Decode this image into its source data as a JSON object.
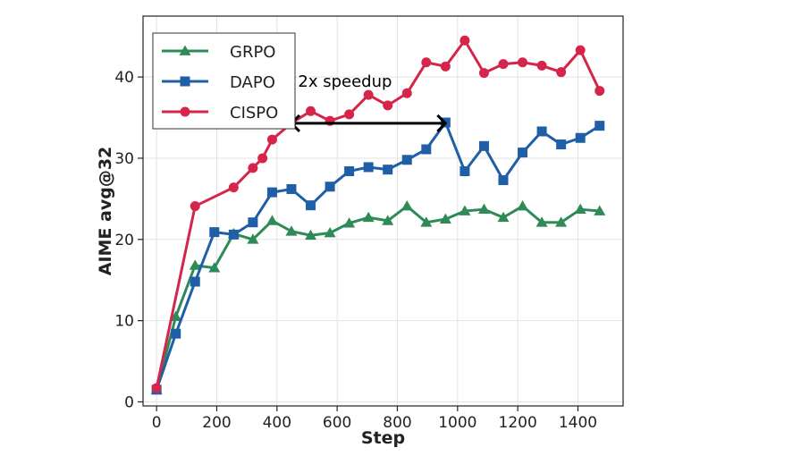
{
  "chart_data": {
    "type": "line",
    "title": "",
    "xlabel": "Step",
    "ylabel": "AIME avg@32",
    "xlim": [
      -45,
      1550
    ],
    "ylim": [
      -0.5,
      47.5
    ],
    "xticks": [
      0,
      200,
      400,
      600,
      800,
      1000,
      1200,
      1400
    ],
    "yticks": [
      0,
      10,
      20,
      30,
      40
    ],
    "grid": true,
    "legend_position": "top-left",
    "series": [
      {
        "name": "GRPO",
        "color": "#2e8b57",
        "marker": "triangle",
        "x": [
          0,
          64,
          128,
          192,
          256,
          320,
          384,
          448,
          512,
          576,
          640,
          704,
          768,
          832,
          896,
          960,
          1024,
          1088,
          1152,
          1216,
          1280,
          1344,
          1408,
          1472
        ],
        "y": [
          1.5,
          10.5,
          16.8,
          16.5,
          20.7,
          20.0,
          22.3,
          21.0,
          20.5,
          20.8,
          22.0,
          22.7,
          22.3,
          24.1,
          22.1,
          22.5,
          23.5,
          23.7,
          22.7,
          24.1,
          22.1,
          22.1,
          23.7,
          23.5
        ]
      },
      {
        "name": "DAPO",
        "color": "#1f5fa8",
        "marker": "square",
        "x": [
          0,
          64,
          128,
          192,
          256,
          320,
          384,
          448,
          512,
          576,
          640,
          704,
          768,
          832,
          896,
          960,
          1024,
          1088,
          1152,
          1216,
          1280,
          1344,
          1408,
          1472
        ],
        "y": [
          1.5,
          8.4,
          14.8,
          20.9,
          20.6,
          22.1,
          25.8,
          26.2,
          24.2,
          26.5,
          28.4,
          28.9,
          28.6,
          29.8,
          31.1,
          34.4,
          28.4,
          31.5,
          27.3,
          30.7,
          33.3,
          31.7,
          32.5,
          34.0
        ]
      },
      {
        "name": "CISPO",
        "color": "#d6254a",
        "marker": "circle",
        "x": [
          0,
          128,
          256,
          320,
          352,
          384,
          448,
          512,
          576,
          640,
          704,
          768,
          832,
          896,
          960,
          1024,
          1088,
          1152,
          1216,
          1280,
          1344,
          1408,
          1472
        ],
        "y": [
          1.7,
          24.1,
          26.4,
          28.8,
          30.0,
          32.3,
          34.3,
          35.8,
          34.6,
          35.4,
          37.8,
          36.5,
          38.0,
          41.8,
          41.3,
          44.5,
          40.5,
          41.6,
          41.8,
          41.4,
          40.6,
          43.3,
          38.3
        ]
      }
    ],
    "annotations": [
      {
        "text": "2x speedup",
        "from": [
          448,
          34.3
        ],
        "to": [
          960,
          34.3
        ],
        "type": "double-arrow"
      }
    ]
  }
}
